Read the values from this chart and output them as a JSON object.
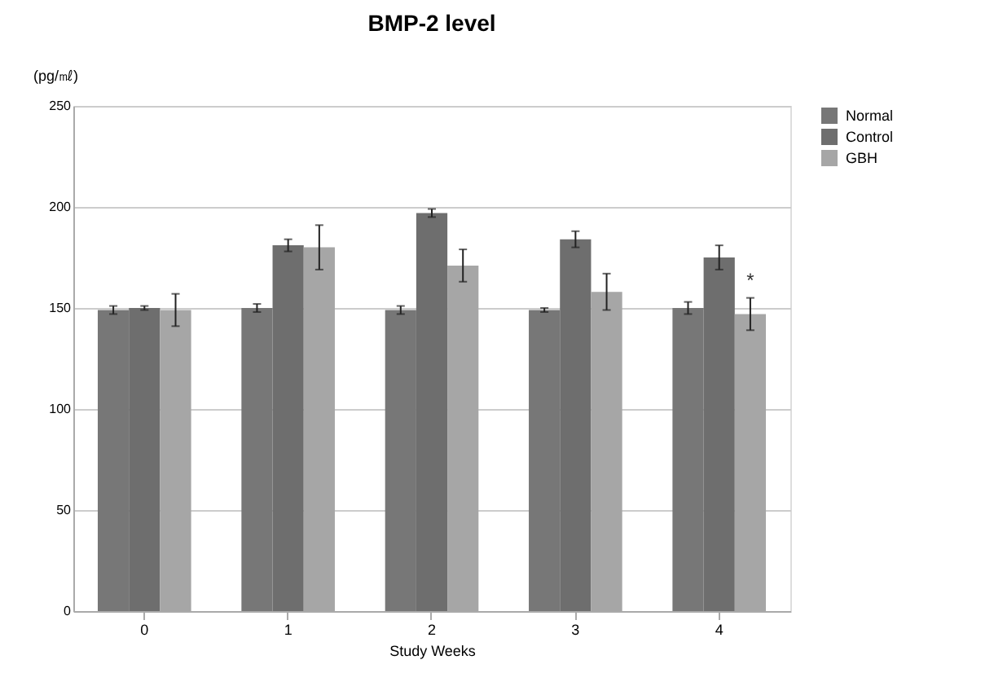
{
  "chart_data": {
    "type": "bar",
    "title": "BMP-2 level",
    "xlabel": "Study Weeks",
    "ylabel": "(pg/㎖)",
    "categories": [
      "0",
      "1",
      "2",
      "3",
      "4"
    ],
    "series": [
      {
        "name": "Normal",
        "color": "#777777",
        "values": [
          149,
          150,
          149,
          149,
          150
        ],
        "errors": [
          2,
          2,
          2,
          1,
          3
        ]
      },
      {
        "name": "Control",
        "color": "#6e6e6e",
        "values": [
          150,
          181,
          197,
          184,
          175
        ],
        "errors": [
          1,
          3,
          2,
          4,
          6
        ]
      },
      {
        "name": "GBH",
        "color": "#a6a6a6",
        "values": [
          149,
          180,
          171,
          158,
          147
        ],
        "errors": [
          8,
          11,
          8,
          9,
          8
        ],
        "value_labels": [
          null,
          null,
          null,
          null,
          "*"
        ]
      }
    ],
    "ylim": [
      0,
      250
    ],
    "yticks": [
      0,
      50,
      100,
      150,
      200,
      250
    ],
    "grid": "y",
    "legend": "right"
  }
}
